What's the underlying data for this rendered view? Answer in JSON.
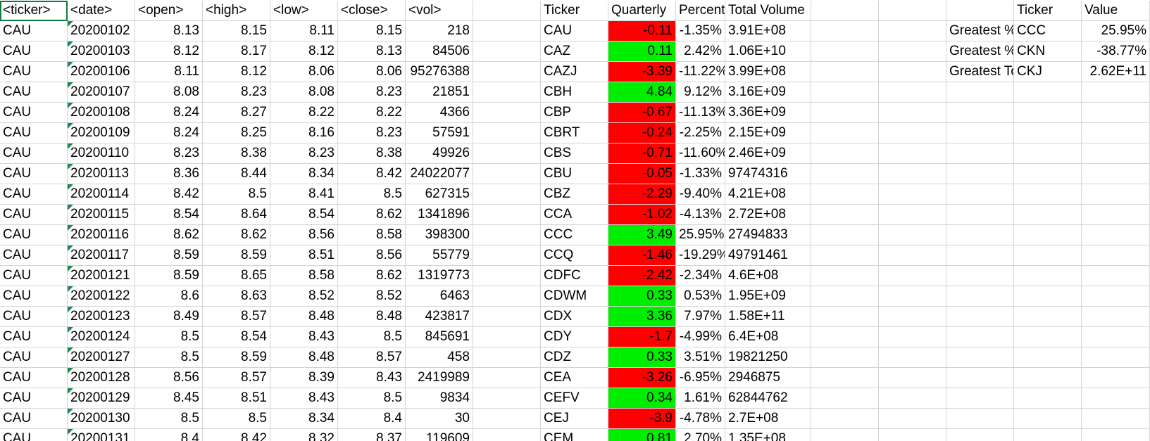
{
  "headers": {
    "ticker": "<ticker>",
    "date": "<date>",
    "open": "<open>",
    "high": "<high>",
    "low": "<low>",
    "close": "<close>",
    "vol": "<vol>",
    "sum_ticker": "Ticker",
    "sum_quarterly": "Quarterly",
    "sum_percent": "Percent Ch",
    "sum_volume": "Total Volume",
    "greatest_ticker": "Ticker",
    "greatest_value": "Value"
  },
  "colors": {
    "negative": "#ff0000",
    "positive": "#00ee00",
    "grid": "#d4d4d4",
    "selection": "#107c41"
  },
  "raw_rows": [
    [
      "CAU",
      "20200102",
      "8.13",
      "8.15",
      "8.11",
      "8.15",
      "218"
    ],
    [
      "CAU",
      "20200103",
      "8.12",
      "8.17",
      "8.12",
      "8.13",
      "84506"
    ],
    [
      "CAU",
      "20200106",
      "8.11",
      "8.12",
      "8.06",
      "8.06",
      "95276388"
    ],
    [
      "CAU",
      "20200107",
      "8.08",
      "8.23",
      "8.08",
      "8.23",
      "21851"
    ],
    [
      "CAU",
      "20200108",
      "8.24",
      "8.27",
      "8.22",
      "8.22",
      "4366"
    ],
    [
      "CAU",
      "20200109",
      "8.24",
      "8.25",
      "8.16",
      "8.23",
      "57591"
    ],
    [
      "CAU",
      "20200110",
      "8.23",
      "8.38",
      "8.23",
      "8.38",
      "49926"
    ],
    [
      "CAU",
      "20200113",
      "8.36",
      "8.44",
      "8.34",
      "8.42",
      "24022077"
    ],
    [
      "CAU",
      "20200114",
      "8.42",
      "8.5",
      "8.41",
      "8.5",
      "627315"
    ],
    [
      "CAU",
      "20200115",
      "8.54",
      "8.64",
      "8.54",
      "8.62",
      "1341896"
    ],
    [
      "CAU",
      "20200116",
      "8.62",
      "8.62",
      "8.56",
      "8.58",
      "398300"
    ],
    [
      "CAU",
      "20200117",
      "8.59",
      "8.59",
      "8.51",
      "8.56",
      "55779"
    ],
    [
      "CAU",
      "20200121",
      "8.59",
      "8.65",
      "8.58",
      "8.62",
      "1319773"
    ],
    [
      "CAU",
      "20200122",
      "8.6",
      "8.63",
      "8.52",
      "8.52",
      "6463"
    ],
    [
      "CAU",
      "20200123",
      "8.49",
      "8.57",
      "8.48",
      "8.48",
      "423817"
    ],
    [
      "CAU",
      "20200124",
      "8.5",
      "8.54",
      "8.43",
      "8.5",
      "845691"
    ],
    [
      "CAU",
      "20200127",
      "8.5",
      "8.59",
      "8.48",
      "8.57",
      "458"
    ],
    [
      "CAU",
      "20200128",
      "8.56",
      "8.57",
      "8.39",
      "8.43",
      "2419989"
    ],
    [
      "CAU",
      "20200129",
      "8.45",
      "8.51",
      "8.43",
      "8.5",
      "9834"
    ],
    [
      "CAU",
      "20200130",
      "8.5",
      "8.5",
      "8.34",
      "8.4",
      "30"
    ],
    [
      "CAU",
      "20200131",
      "8.4",
      "8.42",
      "8.32",
      "8.37",
      "119609"
    ]
  ],
  "summary_rows": [
    {
      "ticker": "CAU",
      "change": "-0.11",
      "sign": "neg",
      "percent": "-1.35%",
      "volume": "3.91E+08"
    },
    {
      "ticker": "CAZ",
      "change": "0.11",
      "sign": "pos",
      "percent": "2.42%",
      "volume": "1.06E+10"
    },
    {
      "ticker": "CAZJ",
      "change": "-3.39",
      "sign": "neg",
      "percent": "-11.22%",
      "volume": "3.99E+08"
    },
    {
      "ticker": "CBH",
      "change": "4.84",
      "sign": "pos",
      "percent": "9.12%",
      "volume": "3.16E+09"
    },
    {
      "ticker": "CBP",
      "change": "-0.67",
      "sign": "neg",
      "percent": "-11.13%",
      "volume": "3.36E+09"
    },
    {
      "ticker": "CBRT",
      "change": "-0.24",
      "sign": "neg",
      "percent": "-2.25%",
      "volume": "2.15E+09"
    },
    {
      "ticker": "CBS",
      "change": "-0.71",
      "sign": "neg",
      "percent": "-11.60%",
      "volume": "2.46E+09"
    },
    {
      "ticker": "CBU",
      "change": "-0.05",
      "sign": "neg",
      "percent": "-1.33%",
      "volume": "97474316"
    },
    {
      "ticker": "CBZ",
      "change": "-2.29",
      "sign": "neg",
      "percent": "-9.40%",
      "volume": "4.21E+08"
    },
    {
      "ticker": "CCA",
      "change": "-1.02",
      "sign": "neg",
      "percent": "-4.13%",
      "volume": "2.72E+08"
    },
    {
      "ticker": "CCC",
      "change": "3.49",
      "sign": "pos",
      "percent": "25.95%",
      "volume": "27494833"
    },
    {
      "ticker": "CCQ",
      "change": "-1.46",
      "sign": "neg",
      "percent": "-19.29%",
      "volume": "49791461"
    },
    {
      "ticker": "CDFC",
      "change": "-2.42",
      "sign": "neg",
      "percent": "-2.34%",
      "volume": "4.6E+08"
    },
    {
      "ticker": "CDWM",
      "change": "0.33",
      "sign": "pos",
      "percent": "0.53%",
      "volume": "1.95E+09"
    },
    {
      "ticker": "CDX",
      "change": "3.36",
      "sign": "pos",
      "percent": "7.97%",
      "volume": "1.58E+11"
    },
    {
      "ticker": "CDY",
      "change": "-1.7",
      "sign": "neg",
      "percent": "-4.99%",
      "volume": "6.4E+08"
    },
    {
      "ticker": "CDZ",
      "change": "0.33",
      "sign": "pos",
      "percent": "3.51%",
      "volume": "19821250"
    },
    {
      "ticker": "CEA",
      "change": "-3.26",
      "sign": "neg",
      "percent": "-6.95%",
      "volume": "2946875"
    },
    {
      "ticker": "CEFV",
      "change": "0.34",
      "sign": "pos",
      "percent": "1.61%",
      "volume": "62844762"
    },
    {
      "ticker": "CEJ",
      "change": "-3.9",
      "sign": "neg",
      "percent": "-4.78%",
      "volume": "2.7E+08"
    },
    {
      "ticker": "CEM",
      "change": "0.81",
      "sign": "pos",
      "percent": "2.70%",
      "volume": "1.35E+08"
    }
  ],
  "greatest_rows": [
    {
      "label": "Greatest % Increase",
      "ticker": "CCC",
      "value": "25.95%"
    },
    {
      "label": "Greatest % Decrease",
      "ticker": "CKN",
      "value": "-38.77%"
    },
    {
      "label": "Greatest Total Volume",
      "ticker": "CKJ",
      "value": "2.62E+11"
    }
  ]
}
